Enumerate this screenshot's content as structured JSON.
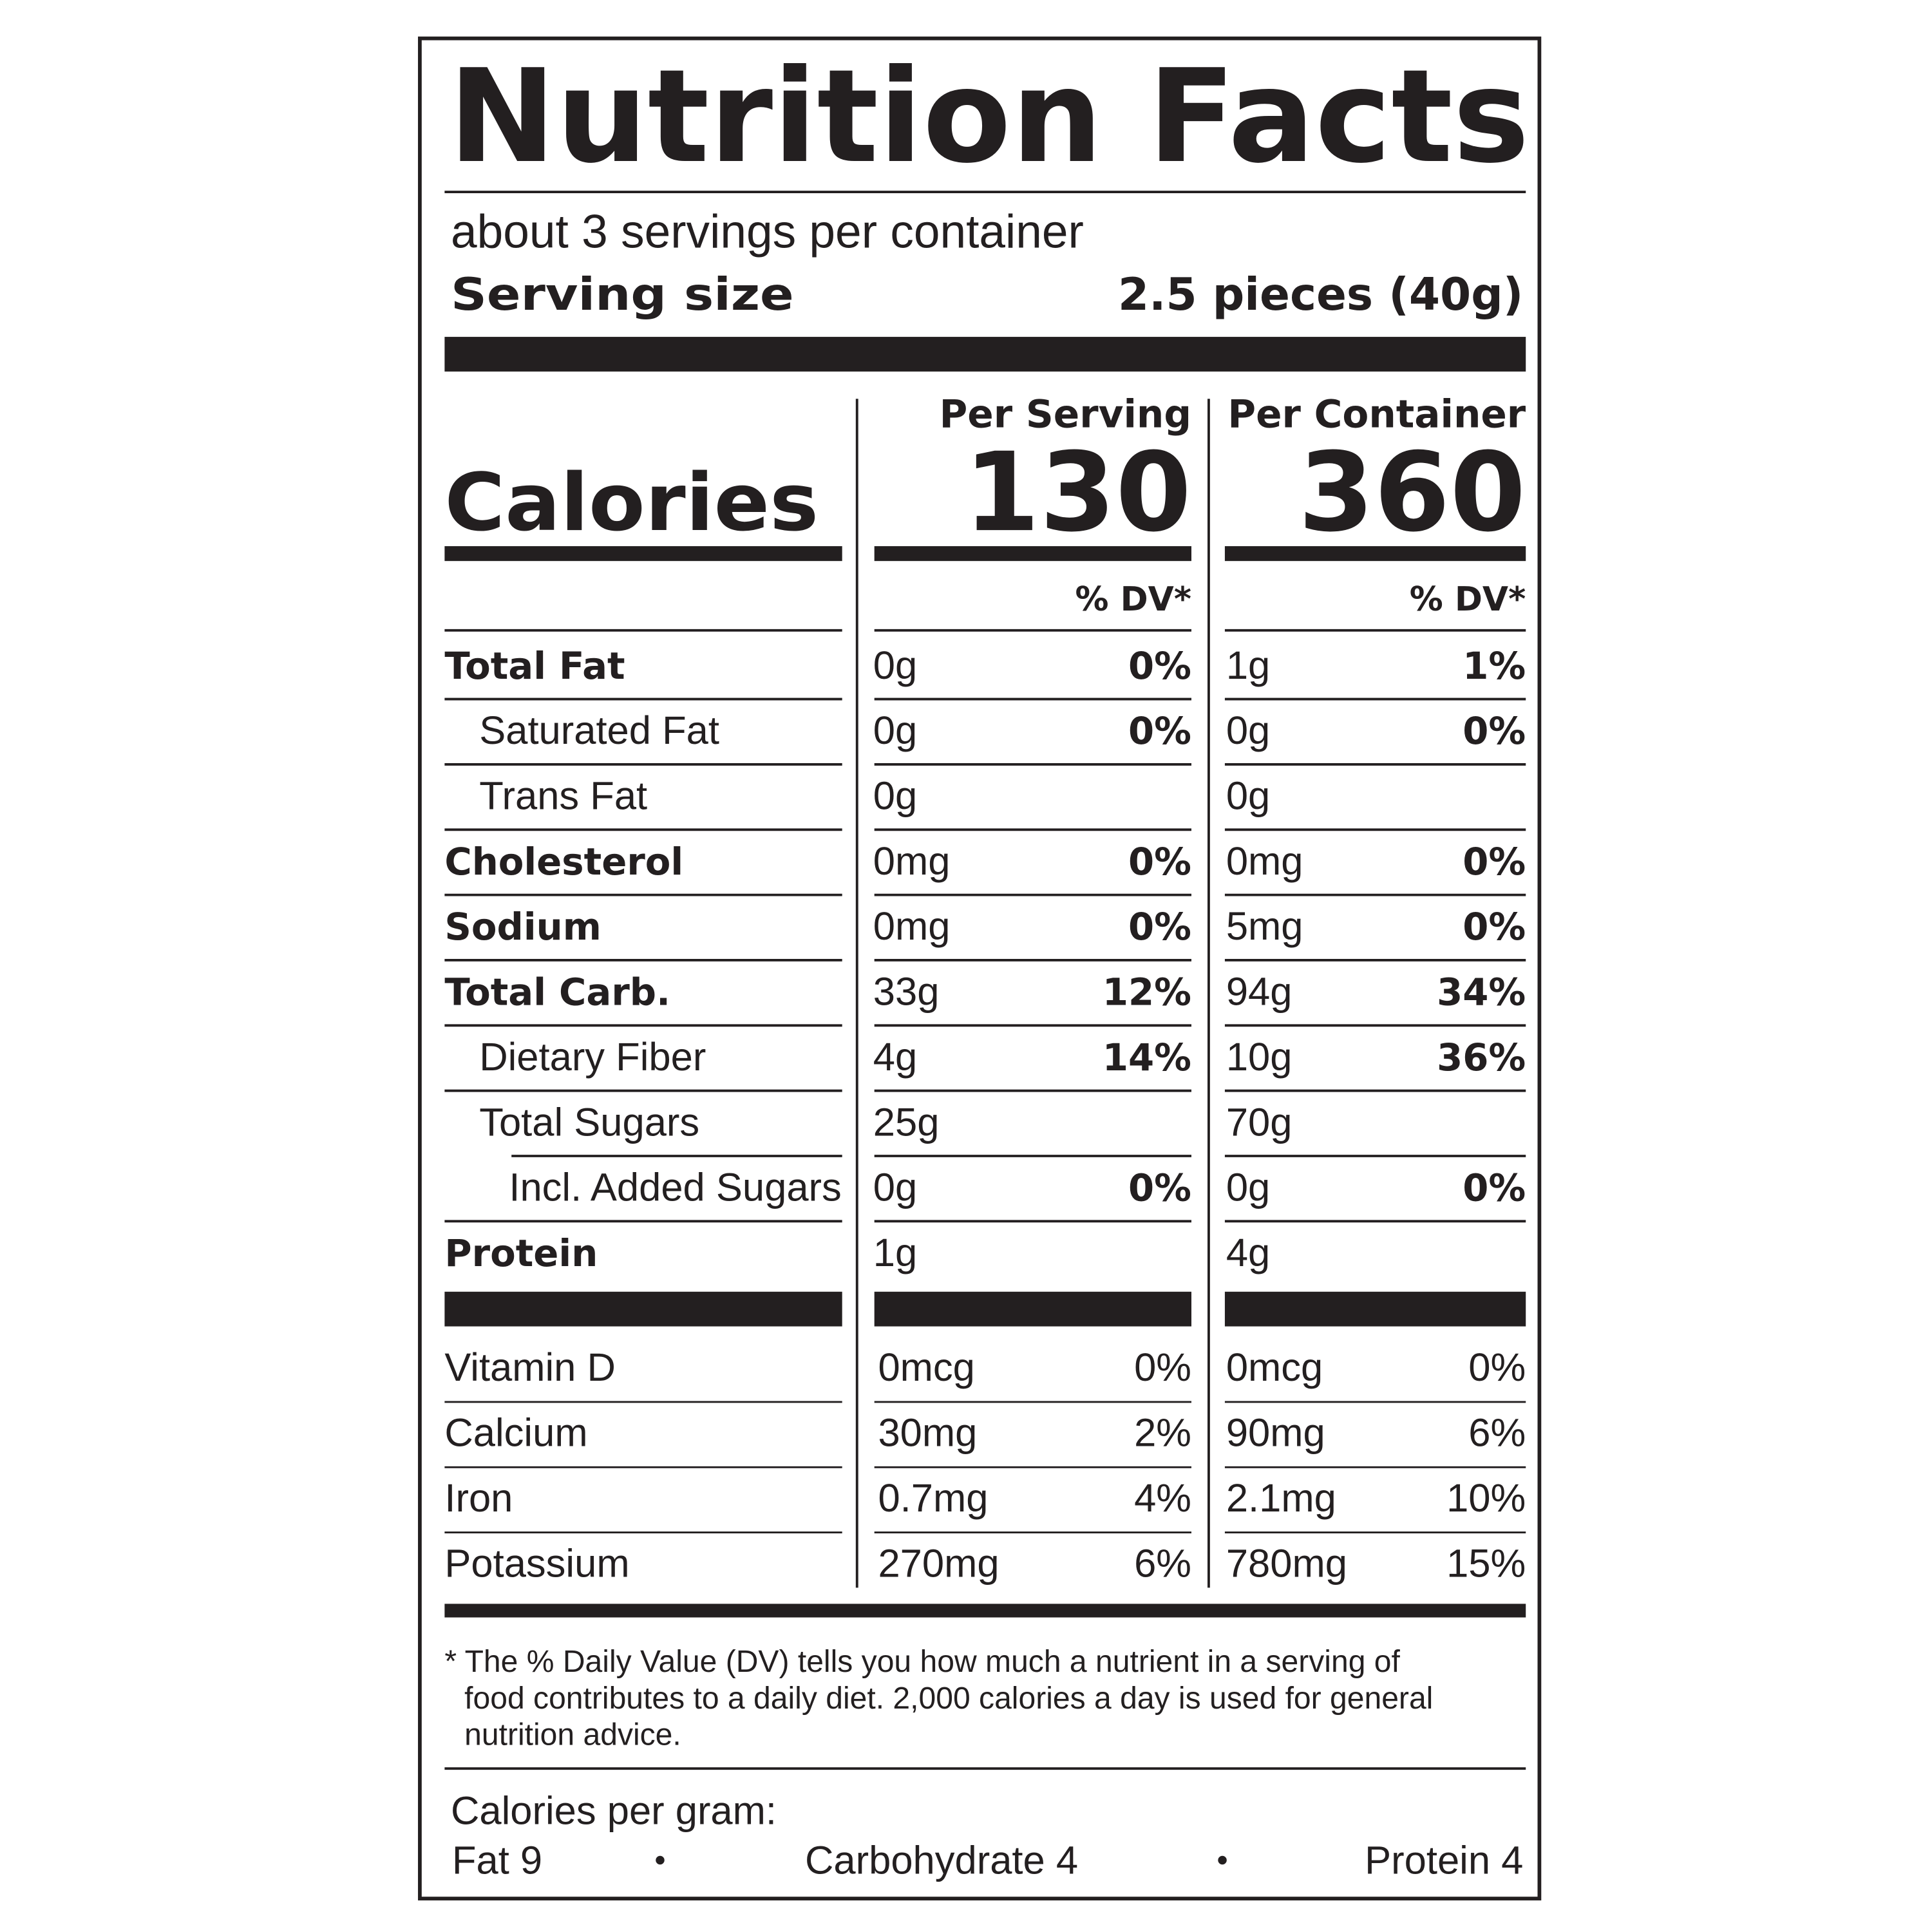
{
  "header": {
    "title": "Nutrition Facts",
    "servings": "about 3 servings per container",
    "serving_size_label": "Serving size",
    "serving_size": "2.5 pieces (40g)"
  },
  "columns": [
    "Per Serving",
    "Per Container"
  ],
  "calories": {
    "label": "Calories",
    "values": [
      "130",
      "360"
    ]
  },
  "dv_header": "% DV*",
  "nutrients": [
    {
      "name": "Total Fat",
      "bold": true,
      "indent": 0,
      "amounts": [
        "0g",
        "1g"
      ],
      "dv": [
        "0%",
        "1%"
      ]
    },
    {
      "name": "Saturated Fat",
      "bold": false,
      "indent": 1,
      "amounts": [
        "0g",
        "0g"
      ],
      "dv": [
        "0%",
        "0%"
      ]
    },
    {
      "name": "Trans Fat",
      "bold": false,
      "indent": 1,
      "amounts": [
        "0g",
        "0g"
      ],
      "dv": [
        null,
        null
      ]
    },
    {
      "name": "Cholesterol",
      "bold": true,
      "indent": 0,
      "amounts": [
        "0mg",
        "0mg"
      ],
      "dv": [
        "0%",
        "0%"
      ]
    },
    {
      "name": "Sodium",
      "bold": true,
      "indent": 0,
      "amounts": [
        "0mg",
        "5mg"
      ],
      "dv": [
        "0%",
        "0%"
      ]
    },
    {
      "name": "Total Carb.",
      "bold": true,
      "indent": 0,
      "amounts": [
        "33g",
        "94g"
      ],
      "dv": [
        "12%",
        "34%"
      ]
    },
    {
      "name": "Dietary Fiber",
      "bold": false,
      "indent": 1,
      "amounts": [
        "4g",
        "10g"
      ],
      "dv": [
        "14%",
        "36%"
      ]
    },
    {
      "name": "Total Sugars",
      "bold": false,
      "indent": 1,
      "amounts": [
        "25g",
        "70g"
      ],
      "dv": [
        null,
        null
      ]
    },
    {
      "name": "Incl. Added Sugars",
      "bold": false,
      "indent": 2,
      "amounts": [
        "0g",
        "0g"
      ],
      "dv": [
        "0%",
        "0%"
      ]
    },
    {
      "name": "Protein",
      "bold": true,
      "indent": 0,
      "amounts": [
        "1g",
        "4g"
      ],
      "dv": [
        null,
        null
      ]
    }
  ],
  "vitamins": [
    {
      "name": "Vitamin D",
      "amounts": [
        "0mcg",
        "0mcg"
      ],
      "dv": [
        "0%",
        "0%"
      ]
    },
    {
      "name": "Calcium",
      "amounts": [
        "30mg",
        "90mg"
      ],
      "dv": [
        "2%",
        "6%"
      ]
    },
    {
      "name": "Iron",
      "amounts": [
        "0.7mg",
        "2.1mg"
      ],
      "dv": [
        "4%",
        "10%"
      ]
    },
    {
      "name": "Potassium",
      "amounts": [
        "270mg",
        "780mg"
      ],
      "dv": [
        "6%",
        "15%"
      ]
    }
  ],
  "footnote": [
    "* The % Daily Value (DV) tells you how much a nutrient in a serving of",
    "food contributes to a daily diet. 2,000 calories a day is used for general",
    "nutrition advice."
  ],
  "calories_per_gram": {
    "label": "Calories per gram:",
    "items": [
      "Fat 9",
      "Carbohydrate 4",
      "Protein 4"
    ]
  }
}
